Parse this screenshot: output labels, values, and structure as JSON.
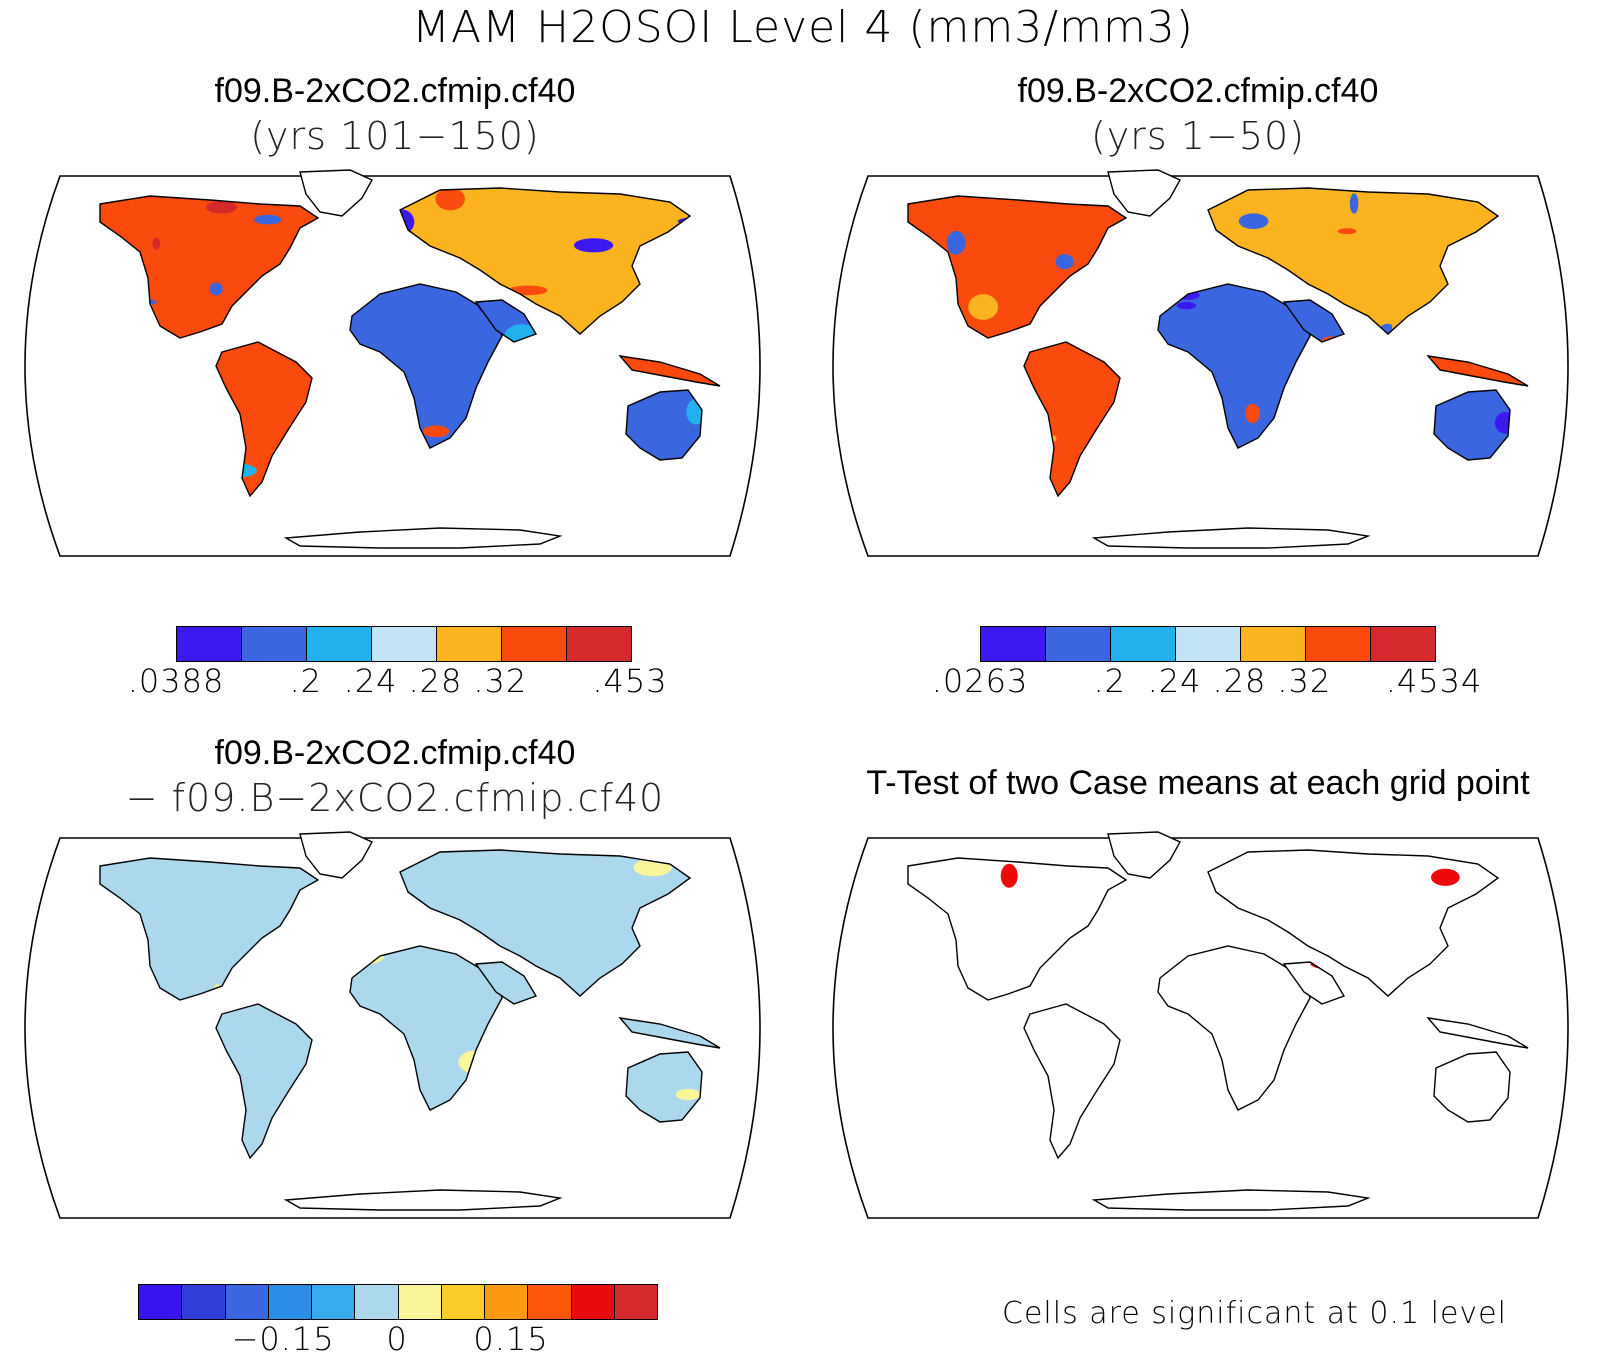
{
  "title": "MAM H2OSOI Level 4 (mm3/mm3)",
  "panels": [
    {
      "title": "f09.B-2xCO2.cfmip.cf40",
      "subtitle": "(yrs 101−150)",
      "colorbar": {
        "colors": [
          "#3c19ef",
          "#3a66df",
          "#22b0ef",
          "#c4e3f4",
          "#fbb420",
          "#fb4a0e",
          "#d52a2c"
        ],
        "labels": [
          ".0388",
          ".2",
          ".24",
          ".28",
          ".32",
          ".453"
        ]
      }
    },
    {
      "title": "f09.B-2xCO2.cfmip.cf40",
      "subtitle": "(yrs 1−50)",
      "colorbar": {
        "colors": [
          "#3c19ef",
          "#3a66df",
          "#22b0ef",
          "#c4e3f4",
          "#fbb420",
          "#fb4a0e",
          "#d52a2c"
        ],
        "labels": [
          ".0263",
          ".2",
          ".24",
          ".28",
          ".32",
          ".4534"
        ]
      }
    },
    {
      "title": "f09.B-2xCO2.cfmip.cf40",
      "subtitle": "− f09.B−2xCO2.cfmip.cf40",
      "colorbar": {
        "colors": [
          "#3a14ee",
          "#2f3fd8",
          "#3a66df",
          "#2a8ee6",
          "#38aaee",
          "#acd8ee",
          "#fbf59a",
          "#fbcc2a",
          "#fb9a10",
          "#fb560a",
          "#e80c0c",
          "#d52a2c"
        ],
        "labels": [
          "−0.15",
          "0",
          "0.15"
        ]
      }
    },
    {
      "title": "T-Test of two Case means at each grid point",
      "note": "Cells are significant at 0.1 level"
    }
  ],
  "colors": {
    "land_outline": "#000000",
    "significant": "#ee0a0a"
  }
}
